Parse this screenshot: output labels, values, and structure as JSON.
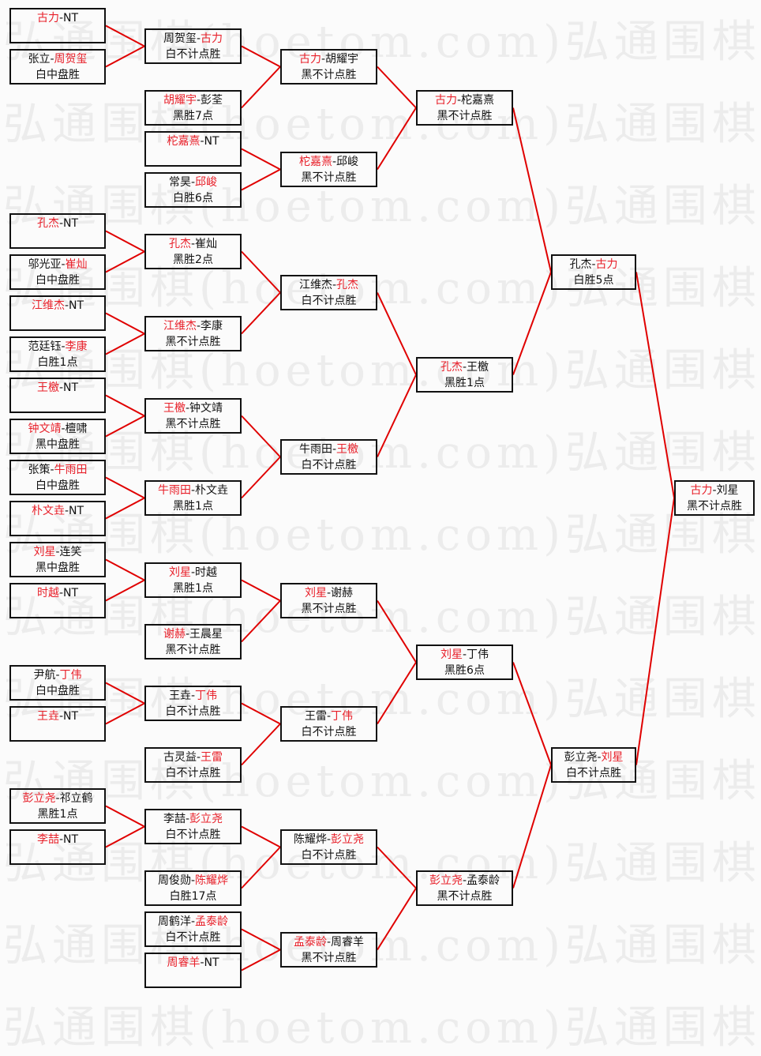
{
  "watermark": "弘通围棋(hoetom.com)",
  "colors": {
    "winner": "#e8202a",
    "connector": "#e00000",
    "border": "#111111"
  },
  "matches": [
    {
      "l": "古力",
      "r": "NT",
      "win": "l",
      "res": ""
    },
    {
      "l": "张立",
      "r": "周贺玺",
      "win": "r",
      "res": "白中盘胜"
    },
    {
      "l": "孔杰",
      "r": "NT",
      "win": "l",
      "res": ""
    },
    {
      "l": "邬光亚",
      "r": "崔灿",
      "win": "r",
      "res": "白中盘胜"
    },
    {
      "l": "江维杰",
      "r": "NT",
      "win": "l",
      "res": ""
    },
    {
      "l": "范廷钰",
      "r": "李康",
      "win": "r",
      "res": "白胜1点"
    },
    {
      "l": "王檄",
      "r": "NT",
      "win": "l",
      "res": ""
    },
    {
      "l": "钟文靖",
      "r": "檀啸",
      "win": "l",
      "res": "黑中盘胜"
    },
    {
      "l": "张策",
      "r": "牛雨田",
      "win": "r",
      "res": "白中盘胜"
    },
    {
      "l": "朴文垚",
      "r": "NT",
      "win": "l",
      "res": ""
    },
    {
      "l": "刘星",
      "r": "连笑",
      "win": "l",
      "res": "黑中盘胜"
    },
    {
      "l": "时越",
      "r": "NT",
      "win": "l",
      "res": ""
    },
    {
      "l": "尹航",
      "r": "丁伟",
      "win": "r",
      "res": "白中盘胜"
    },
    {
      "l": "王垚",
      "r": "NT",
      "win": "l",
      "res": ""
    },
    {
      "l": "彭立尧",
      "r": "祁立鹤",
      "win": "l",
      "res": "黑胜1点"
    },
    {
      "l": "李喆",
      "r": "NT",
      "win": "l",
      "res": ""
    },
    {
      "l": "周贺玺",
      "r": "古力",
      "win": "r",
      "res": "白不计点胜"
    },
    {
      "l": "胡耀宇",
      "r": "彭荃",
      "win": "l",
      "res": "黑胜7点"
    },
    {
      "l": "柁嘉熹",
      "r": "NT",
      "win": "l",
      "res": ""
    },
    {
      "l": "常昊",
      "r": "邱峻",
      "win": "r",
      "res": "白胜6点"
    },
    {
      "l": "孔杰",
      "r": "崔灿",
      "win": "l",
      "res": "黑胜2点"
    },
    {
      "l": "江维杰",
      "r": "李康",
      "win": "l",
      "res": "黑不计点胜"
    },
    {
      "l": "王檄",
      "r": "钟文靖",
      "win": "l",
      "res": "黑不计点胜"
    },
    {
      "l": "牛雨田",
      "r": "朴文垚",
      "win": "l",
      "res": "黑胜1点"
    },
    {
      "l": "刘星",
      "r": "时越",
      "win": "l",
      "res": "黑胜1点"
    },
    {
      "l": "谢赫",
      "r": "王晨星",
      "win": "l",
      "res": "黑不计点胜"
    },
    {
      "l": "王垚",
      "r": "丁伟",
      "win": "r",
      "res": "白不计点胜"
    },
    {
      "l": "古灵益",
      "r": "王雷",
      "win": "r",
      "res": "白不计点胜"
    },
    {
      "l": "李喆",
      "r": "彭立尧",
      "win": "r",
      "res": "白不计点胜"
    },
    {
      "l": "周俊勋",
      "r": "陈耀烨",
      "win": "r",
      "res": "白胜17点"
    },
    {
      "l": "周鹤洋",
      "r": "孟泰龄",
      "win": "r",
      "res": "白不计点胜"
    },
    {
      "l": "周睿羊",
      "r": "NT",
      "win": "l",
      "res": ""
    },
    {
      "l": "古力",
      "r": "胡耀宇",
      "win": "l",
      "res": "黑不计点胜"
    },
    {
      "l": "柁嘉熹",
      "r": "邱峻",
      "win": "l",
      "res": "黑不计点胜"
    },
    {
      "l": "江维杰",
      "r": "孔杰",
      "win": "r",
      "res": "白不计点胜"
    },
    {
      "l": "牛雨田",
      "r": "王檄",
      "win": "r",
      "res": "白不计点胜"
    },
    {
      "l": "刘星",
      "r": "谢赫",
      "win": "l",
      "res": "黑不计点胜"
    },
    {
      "l": "王雷",
      "r": "丁伟",
      "win": "r",
      "res": "白不计点胜"
    },
    {
      "l": "陈耀烨",
      "r": "彭立尧",
      "win": "r",
      "res": "白不计点胜"
    },
    {
      "l": "孟泰龄",
      "r": "周睿羊",
      "win": "l",
      "res": "黑不计点胜"
    },
    {
      "l": "古力",
      "r": "柁嘉熹",
      "win": "l",
      "res": "黑不计点胜"
    },
    {
      "l": "孔杰",
      "r": "王檄",
      "win": "l",
      "res": "黑胜1点"
    },
    {
      "l": "刘星",
      "r": "丁伟",
      "win": "l",
      "res": "黑胜6点"
    },
    {
      "l": "彭立尧",
      "r": "孟泰龄",
      "win": "l",
      "res": "黑不计点胜"
    },
    {
      "l": "孔杰",
      "r": "古力",
      "win": "r",
      "res": "白胜5点"
    },
    {
      "l": "彭立尧",
      "r": "刘星",
      "win": "r",
      "res": "白不计点胜"
    },
    {
      "l": "古力",
      "r": "刘星",
      "win": "l",
      "res": "黑不计点胜"
    }
  ]
}
